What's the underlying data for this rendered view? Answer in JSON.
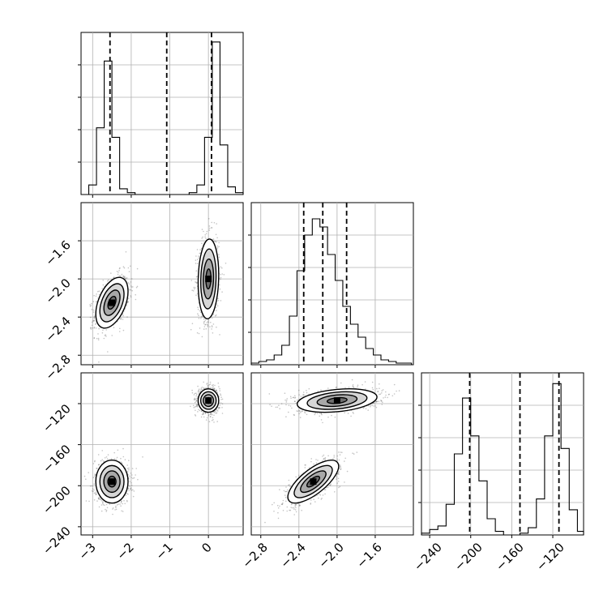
{
  "figure": {
    "type": "corner"
  },
  "chart_data": {
    "type": "corner",
    "grid": true,
    "parameters": [
      {
        "range": [
          -3.3,
          0.9
        ],
        "ticks": [
          -3,
          -2,
          -1,
          0
        ],
        "tick_labels": [
          "−3",
          "−2",
          "−1",
          "0"
        ],
        "quantiles": [
          -2.55,
          -1.08,
          0.08
        ],
        "histogram": {
          "edges": [
            -3.3,
            -3.1,
            -2.9,
            -2.7,
            -2.5,
            -2.3,
            -2.1,
            -1.9,
            -1.7,
            -1.5,
            -1.3,
            -1.1,
            -0.9,
            -0.7,
            -0.5,
            -0.3,
            -0.1,
            0.1,
            0.3,
            0.5,
            0.7,
            0.9
          ],
          "counts": [
            0,
            5,
            35,
            70,
            30,
            3,
            1,
            0,
            0,
            0,
            0,
            0,
            0,
            0,
            1,
            5,
            30,
            80,
            26,
            4,
            1
          ]
        },
        "hist_ymax": 85
      },
      {
        "range": [
          -2.9,
          -1.2
        ],
        "ticks": [
          -2.8,
          -2.4,
          -2.0,
          -1.6
        ],
        "tick_labels": [
          "−2.8",
          "−2.4",
          "−2.0",
          "−1.6"
        ],
        "quantiles": [
          -2.35,
          -2.15,
          -1.9
        ],
        "histogram": {
          "edges": [
            -2.9,
            -2.82,
            -2.74,
            -2.66,
            -2.58,
            -2.5,
            -2.42,
            -2.34,
            -2.26,
            -2.18,
            -2.1,
            -2.02,
            -1.94,
            -1.86,
            -1.78,
            -1.7,
            -1.62,
            -1.54,
            -1.46,
            -1.38,
            -1.3,
            -1.22
          ],
          "counts": [
            1,
            2,
            3,
            6,
            12,
            30,
            58,
            80,
            90,
            85,
            68,
            52,
            36,
            25,
            17,
            10,
            6,
            3,
            2,
            1,
            1
          ]
        },
        "hist_ymax": 100
      },
      {
        "range": [
          -248,
          -90
        ],
        "ticks": [
          -240,
          -200,
          -160,
          -120
        ],
        "tick_labels": [
          "−240",
          "−200",
          "−160",
          "−120"
        ],
        "quantiles": [
          -201,
          -152,
          -114
        ],
        "histogram": {
          "edges": [
            -248,
            -240,
            -232,
            -224,
            -216,
            -208,
            -200,
            -192,
            -184,
            -176,
            -168,
            -160,
            -152,
            -144,
            -136,
            -128,
            -120,
            -112,
            -104,
            -96,
            -90
          ],
          "counts": [
            1,
            3,
            5,
            17,
            45,
            76,
            55,
            30,
            9,
            2,
            0,
            0,
            1,
            4,
            20,
            55,
            84,
            48,
            14,
            2
          ]
        },
        "hist_ymax": 90
      }
    ],
    "clusters": [
      {
        "center": [
          -2.5,
          -2.25,
          -196
        ],
        "sd": [
          0.22,
          0.14,
          11
        ],
        "rho": {
          "p0p1": 0.45,
          "p1p2": 0.72
        }
      },
      {
        "center": [
          0.0,
          -2.0,
          -117
        ],
        "sd": [
          0.14,
          0.22,
          6
        ],
        "rho": {
          "p0p1": 0.1,
          "p1p2": 0.3
        }
      }
    ],
    "contour_levels": [
      0.5,
      1.0,
      1.5,
      2.0
    ]
  }
}
